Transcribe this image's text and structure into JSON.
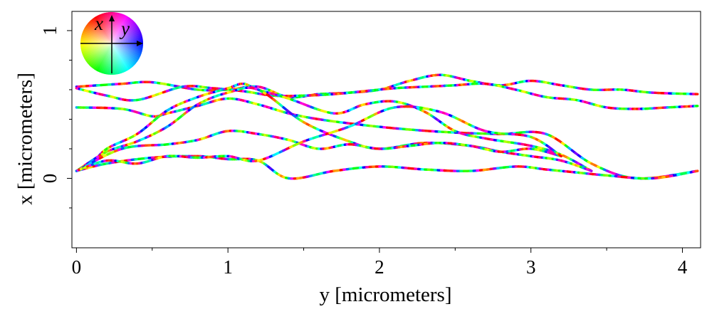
{
  "chart_data": {
    "type": "line",
    "xlabel": "y [micrometers]",
    "ylabel": "x [micrometers]",
    "xlim": [
      -0.03,
      4.12
    ],
    "ylim": [
      -0.47,
      1.13
    ],
    "x_ticks": [
      0,
      1,
      2,
      3,
      4
    ],
    "x_minor_ticks": [
      0.5,
      1.5,
      2.5,
      3.5
    ],
    "y_ticks": [
      0,
      1
    ],
    "y_minor_ticks": [
      -0.2,
      0.2,
      0.4,
      0.6,
      0.8
    ],
    "color_encoding": "hue indicates local direction of the trace",
    "legend": {
      "type": "direction color wheel",
      "position": "top-left",
      "axis_labels": [
        "x",
        "y"
      ]
    },
    "series": [
      {
        "x": [
          0,
          0.3,
          0.5,
          0.8,
          1.0,
          1.2,
          1.4,
          1.6,
          1.8,
          2.0,
          2.2,
          2.4,
          2.6,
          2.8,
          3.0,
          3.2,
          3.4,
          3.6,
          3.8,
          4.1
        ],
        "y": [
          0.62,
          0.64,
          0.65,
          0.6,
          0.6,
          0.62,
          0.55,
          0.57,
          0.58,
          0.6,
          0.66,
          0.7,
          0.66,
          0.63,
          0.66,
          0.63,
          0.6,
          0.6,
          0.58,
          0.57
        ]
      },
      {
        "x": [
          0,
          0.2,
          0.4,
          0.7,
          0.9,
          1.1,
          1.3,
          1.5,
          1.7,
          1.9,
          2.1,
          2.3,
          2.5,
          2.7,
          2.9,
          3.1,
          3.3,
          3.5,
          3.7,
          3.9,
          4.1
        ],
        "y": [
          0.61,
          0.56,
          0.53,
          0.62,
          0.61,
          0.59,
          0.56,
          0.56,
          0.57,
          0.59,
          0.61,
          0.62,
          0.63,
          0.64,
          0.6,
          0.55,
          0.53,
          0.48,
          0.47,
          0.48,
          0.49
        ]
      },
      {
        "x": [
          0,
          0.3,
          0.5,
          0.6,
          0.8,
          1.0,
          1.2,
          1.4,
          1.6,
          1.9,
          2.2,
          2.5,
          2.8,
          3.1,
          3.4,
          3.7,
          4.1
        ],
        "y": [
          0.48,
          0.47,
          0.42,
          0.44,
          0.49,
          0.54,
          0.5,
          0.44,
          0.4,
          0.36,
          0.33,
          0.31,
          0.3,
          0.3,
          0.1,
          0.0,
          0.05
        ]
      },
      {
        "x": [
          0,
          0.1,
          0.2,
          0.4,
          0.6,
          0.8,
          1.0,
          1.1,
          1.2,
          1.4,
          1.7,
          1.9,
          2.1,
          2.3,
          2.5,
          2.7,
          3.0,
          3.2,
          3.4
        ],
        "y": [
          0.05,
          0.1,
          0.2,
          0.3,
          0.46,
          0.55,
          0.61,
          0.64,
          0.6,
          0.54,
          0.44,
          0.5,
          0.52,
          0.45,
          0.32,
          0.27,
          0.22,
          0.16,
          0.05
        ]
      },
      {
        "x": [
          0,
          0.2,
          0.4,
          0.6,
          0.8,
          1.0,
          1.2,
          1.5,
          1.8,
          2.0,
          2.3,
          2.6,
          2.8,
          3.0,
          3.2,
          3.4
        ],
        "y": [
          0.05,
          0.18,
          0.25,
          0.35,
          0.5,
          0.58,
          0.6,
          0.38,
          0.25,
          0.2,
          0.24,
          0.22,
          0.18,
          0.15,
          0.12,
          0.05
        ]
      },
      {
        "x": [
          0,
          0.3,
          0.6,
          0.8,
          1.0,
          1.2,
          1.4,
          1.6,
          1.8,
          2.0,
          2.2,
          2.4,
          2.6,
          2.8,
          3.0,
          3.2
        ],
        "y": [
          0.05,
          0.2,
          0.23,
          0.26,
          0.32,
          0.3,
          0.26,
          0.2,
          0.23,
          0.2,
          0.22,
          0.24,
          0.22,
          0.18,
          0.2,
          0.15
        ]
      },
      {
        "x": [
          0,
          0.2,
          0.5,
          0.8,
          1.0,
          1.2,
          1.4,
          1.7,
          2.0,
          2.3,
          2.6,
          2.9,
          3.1,
          3.3,
          3.5,
          3.8,
          4.1
        ],
        "y": [
          0.05,
          0.1,
          0.14,
          0.15,
          0.13,
          0.12,
          0.0,
          0.05,
          0.08,
          0.06,
          0.05,
          0.08,
          0.06,
          0.04,
          0.02,
          0.0,
          0.05
        ]
      },
      {
        "x": [
          0,
          0.2,
          0.4,
          0.6,
          0.8,
          1.0,
          1.2,
          1.5,
          1.8,
          2.1,
          2.4,
          2.7,
          3.0,
          3.2
        ],
        "y": [
          0.05,
          0.12,
          0.1,
          0.15,
          0.14,
          0.15,
          0.12,
          0.25,
          0.35,
          0.48,
          0.45,
          0.32,
          0.28,
          0.15
        ]
      }
    ]
  }
}
